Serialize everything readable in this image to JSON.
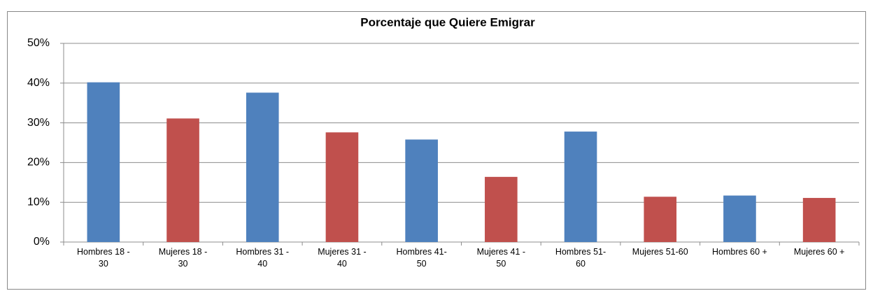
{
  "chart_data": {
    "type": "bar",
    "title": "Porcentaje que Quiere Emigrar",
    "categories": [
      "Hombres 18 - 30",
      "Mujeres 18 - 30",
      "Hombres 31 - 40",
      "Mujeres 31 - 40",
      "Hombres 41-50",
      "Mujeres 41 - 50",
      "Hombres 51-60",
      "Mujeres 51-60",
      "Hombres 60 +",
      "Mujeres 60 +"
    ],
    "values": [
      40.2,
      31.1,
      37.6,
      27.6,
      25.8,
      16.4,
      27.8,
      11.4,
      11.7,
      11.1
    ],
    "colors": [
      "#4f81bd",
      "#c0504d",
      "#4f81bd",
      "#c0504d",
      "#4f81bd",
      "#c0504d",
      "#4f81bd",
      "#c0504d",
      "#4f81bd",
      "#c0504d"
    ],
    "ylim": [
      0,
      50
    ],
    "yticks": [
      {
        "value": 0,
        "label": "0%"
      },
      {
        "value": 10,
        "label": "10%"
      },
      {
        "value": 20,
        "label": "20%"
      },
      {
        "value": 30,
        "label": "30%"
      },
      {
        "value": 40,
        "label": "40%"
      },
      {
        "value": 50,
        "label": "50%"
      }
    ],
    "grid": true
  }
}
